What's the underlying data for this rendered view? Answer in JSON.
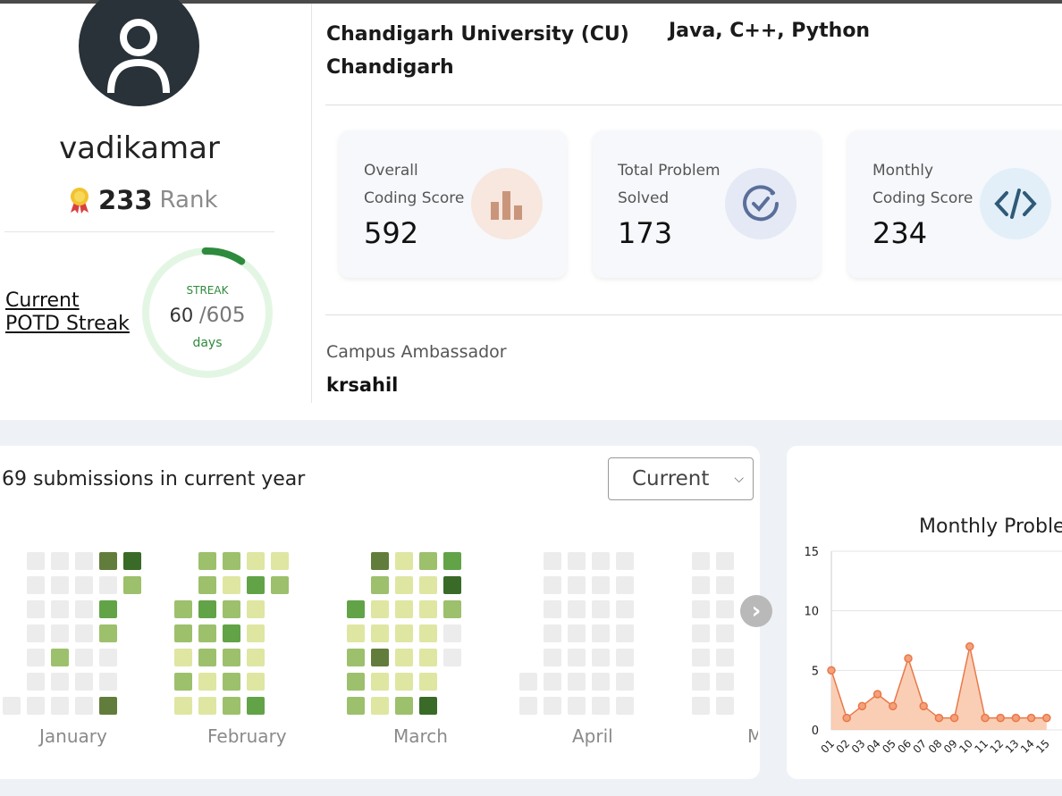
{
  "profile": {
    "username": "vadikamar",
    "rank": "233",
    "rank_label": "Rank",
    "streak_label_line1": "Current",
    "streak_label_line2": "POTD Streak",
    "streak_title": "STREAK",
    "streak_current": "60",
    "streak_total": "/605",
    "streak_unit": "days",
    "streak_fraction": 0.099
  },
  "info": {
    "institution": "Chandigarh University (CU)",
    "city": "Chandigarh",
    "languages": "Java, C++, Python"
  },
  "cards": [
    {
      "line1": "Overall",
      "line2": "Coding Score",
      "value": "592",
      "icon": "bar-chart-icon",
      "icon_bg": "#f7e7de",
      "icon_color": "#c9967c"
    },
    {
      "line1": "Total Problem",
      "line2": "Solved",
      "value": "173",
      "icon": "check-circle-icon",
      "icon_bg": "#e4e9f5",
      "icon_color": "#5a6e9a"
    },
    {
      "line1": "Monthly",
      "line2": "Coding Score",
      "value": "234",
      "icon": "code-icon",
      "icon_bg": "#e2eff8",
      "icon_color": "#2f5a78"
    }
  ],
  "ambassador": {
    "label": "Campus Ambassador",
    "name": "krsahil"
  },
  "heatmap": {
    "summary": "69 submissions in current year",
    "select_value": "Current",
    "months": [
      "January",
      "February",
      "March",
      "April",
      "M"
    ],
    "colors": {
      "empty": "#ececec",
      "l1": "#dfe6a2",
      "l2": "#9dc06c",
      "l3": "#62a348",
      "l4": "#627d3b",
      "l5": "#3a6a28"
    }
  },
  "chart_data": {
    "type": "area",
    "title": "Monthly Proble",
    "x": [
      "01",
      "02",
      "03",
      "04",
      "05",
      "06",
      "07",
      "08",
      "09",
      "10",
      "11",
      "12",
      "13",
      "14",
      "15"
    ],
    "values": [
      5,
      1,
      2,
      3,
      2,
      6,
      2,
      1,
      1,
      7,
      1,
      1,
      1,
      1,
      1
    ],
    "yticks": [
      0,
      5,
      10,
      15
    ],
    "ylim": [
      0,
      15
    ],
    "color": "#e8794a",
    "fill": "#f9c6a8"
  }
}
